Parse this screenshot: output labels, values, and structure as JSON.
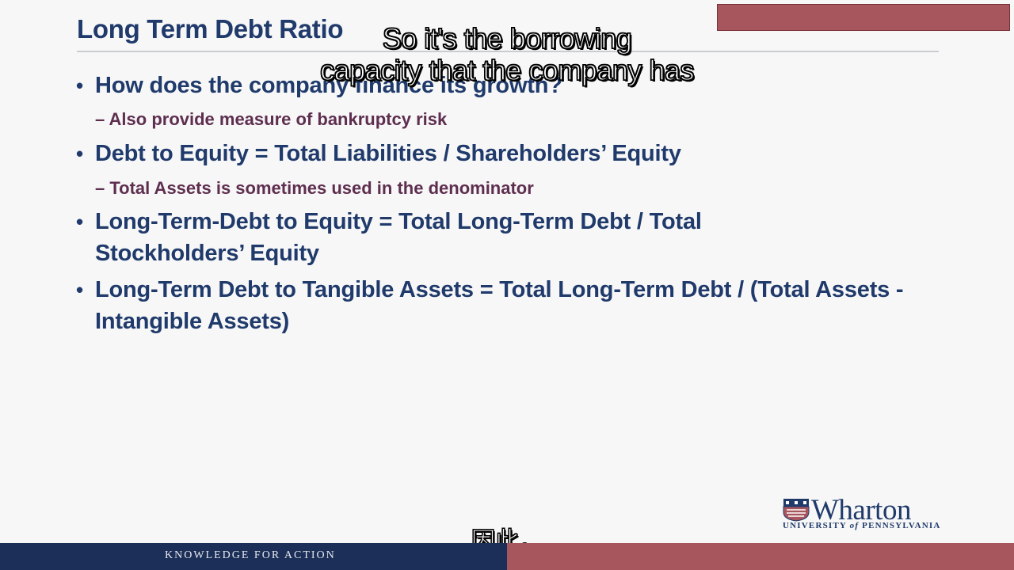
{
  "slide": {
    "title": "Long Term Debt Ratio",
    "bullets": [
      {
        "text": "How does the company finance its growth?"
      },
      {
        "text": "Debt to Equity = Total Liabilities / Shareholders’ Equity"
      },
      {
        "text": "Long-Term-Debt to Equity = Total Long-Term Debt / Total Stockholders’ Equity"
      },
      {
        "text": "Long-Term Debt to Tangible Assets = Total Long-Term Debt / (Total Assets - Intangible Assets)"
      }
    ],
    "subbullets": [
      {
        "text": "– Also provide measure of bankruptcy risk"
      },
      {
        "text": "– Total Assets is sometimes used in the denominator"
      }
    ]
  },
  "captions": {
    "english_line1": "So it's the borrowing",
    "english_line2": "capacity that the company has",
    "chinese": "因此，"
  },
  "logo": {
    "wordmark": "Wharton",
    "university": "UNIVERSITY of PENNSYLVANIA",
    "university_pre": "UNIVERSITY ",
    "university_of": "of",
    "university_post": " PENNSYLVANIA"
  },
  "footer": {
    "tagline": "KNOWLEDGE FOR ACTION"
  },
  "colors": {
    "navy": "#1f3a6b",
    "plum": "#5e2e4f",
    "maroon": "#a8565e",
    "footer_navy": "#1b2f58"
  }
}
